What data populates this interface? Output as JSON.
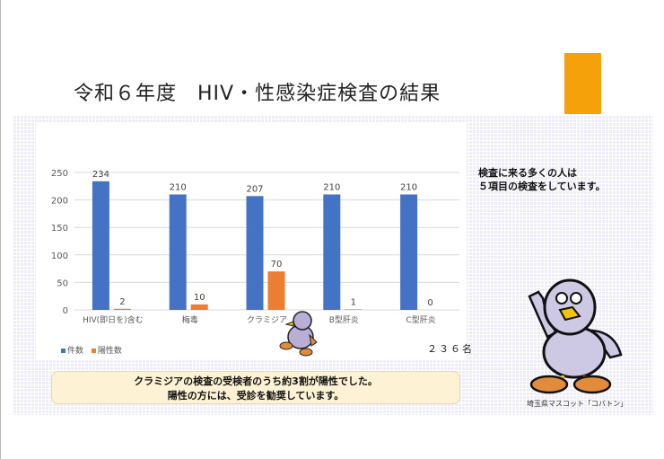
{
  "header": {
    "title": "令和６年度　HIV・性感染症検査の結果",
    "accent_color": "#f5a20a"
  },
  "note": {
    "line1": "検査に来る多くの人は",
    "line2": "５項目の検査をしています。"
  },
  "callout": {
    "line1": "クラミジアの検査の受検者のうち約3割が陽性でした。",
    "line2": "陽性の方には、受診を勧奨しています。"
  },
  "total_label": "２３６名",
  "mascot_caption": "埼玉県マスコット「コバトン」",
  "chart_data": {
    "type": "bar",
    "categories": [
      "HIV(即日を)含む",
      "梅毒",
      "クラミジア",
      "B型肝炎",
      "C型肝炎"
    ],
    "series": [
      {
        "name": "件数",
        "values": [
          234,
          210,
          207,
          210,
          210
        ],
        "color": "#4472c4"
      },
      {
        "name": "陽性数",
        "values": [
          2,
          10,
          70,
          1,
          0
        ],
        "color": "#ed7d31"
      }
    ],
    "ylim": [
      0,
      250
    ],
    "yticks": [
      0,
      50,
      100,
      150,
      200,
      250
    ],
    "grid": true,
    "legend": "bottom-left"
  }
}
